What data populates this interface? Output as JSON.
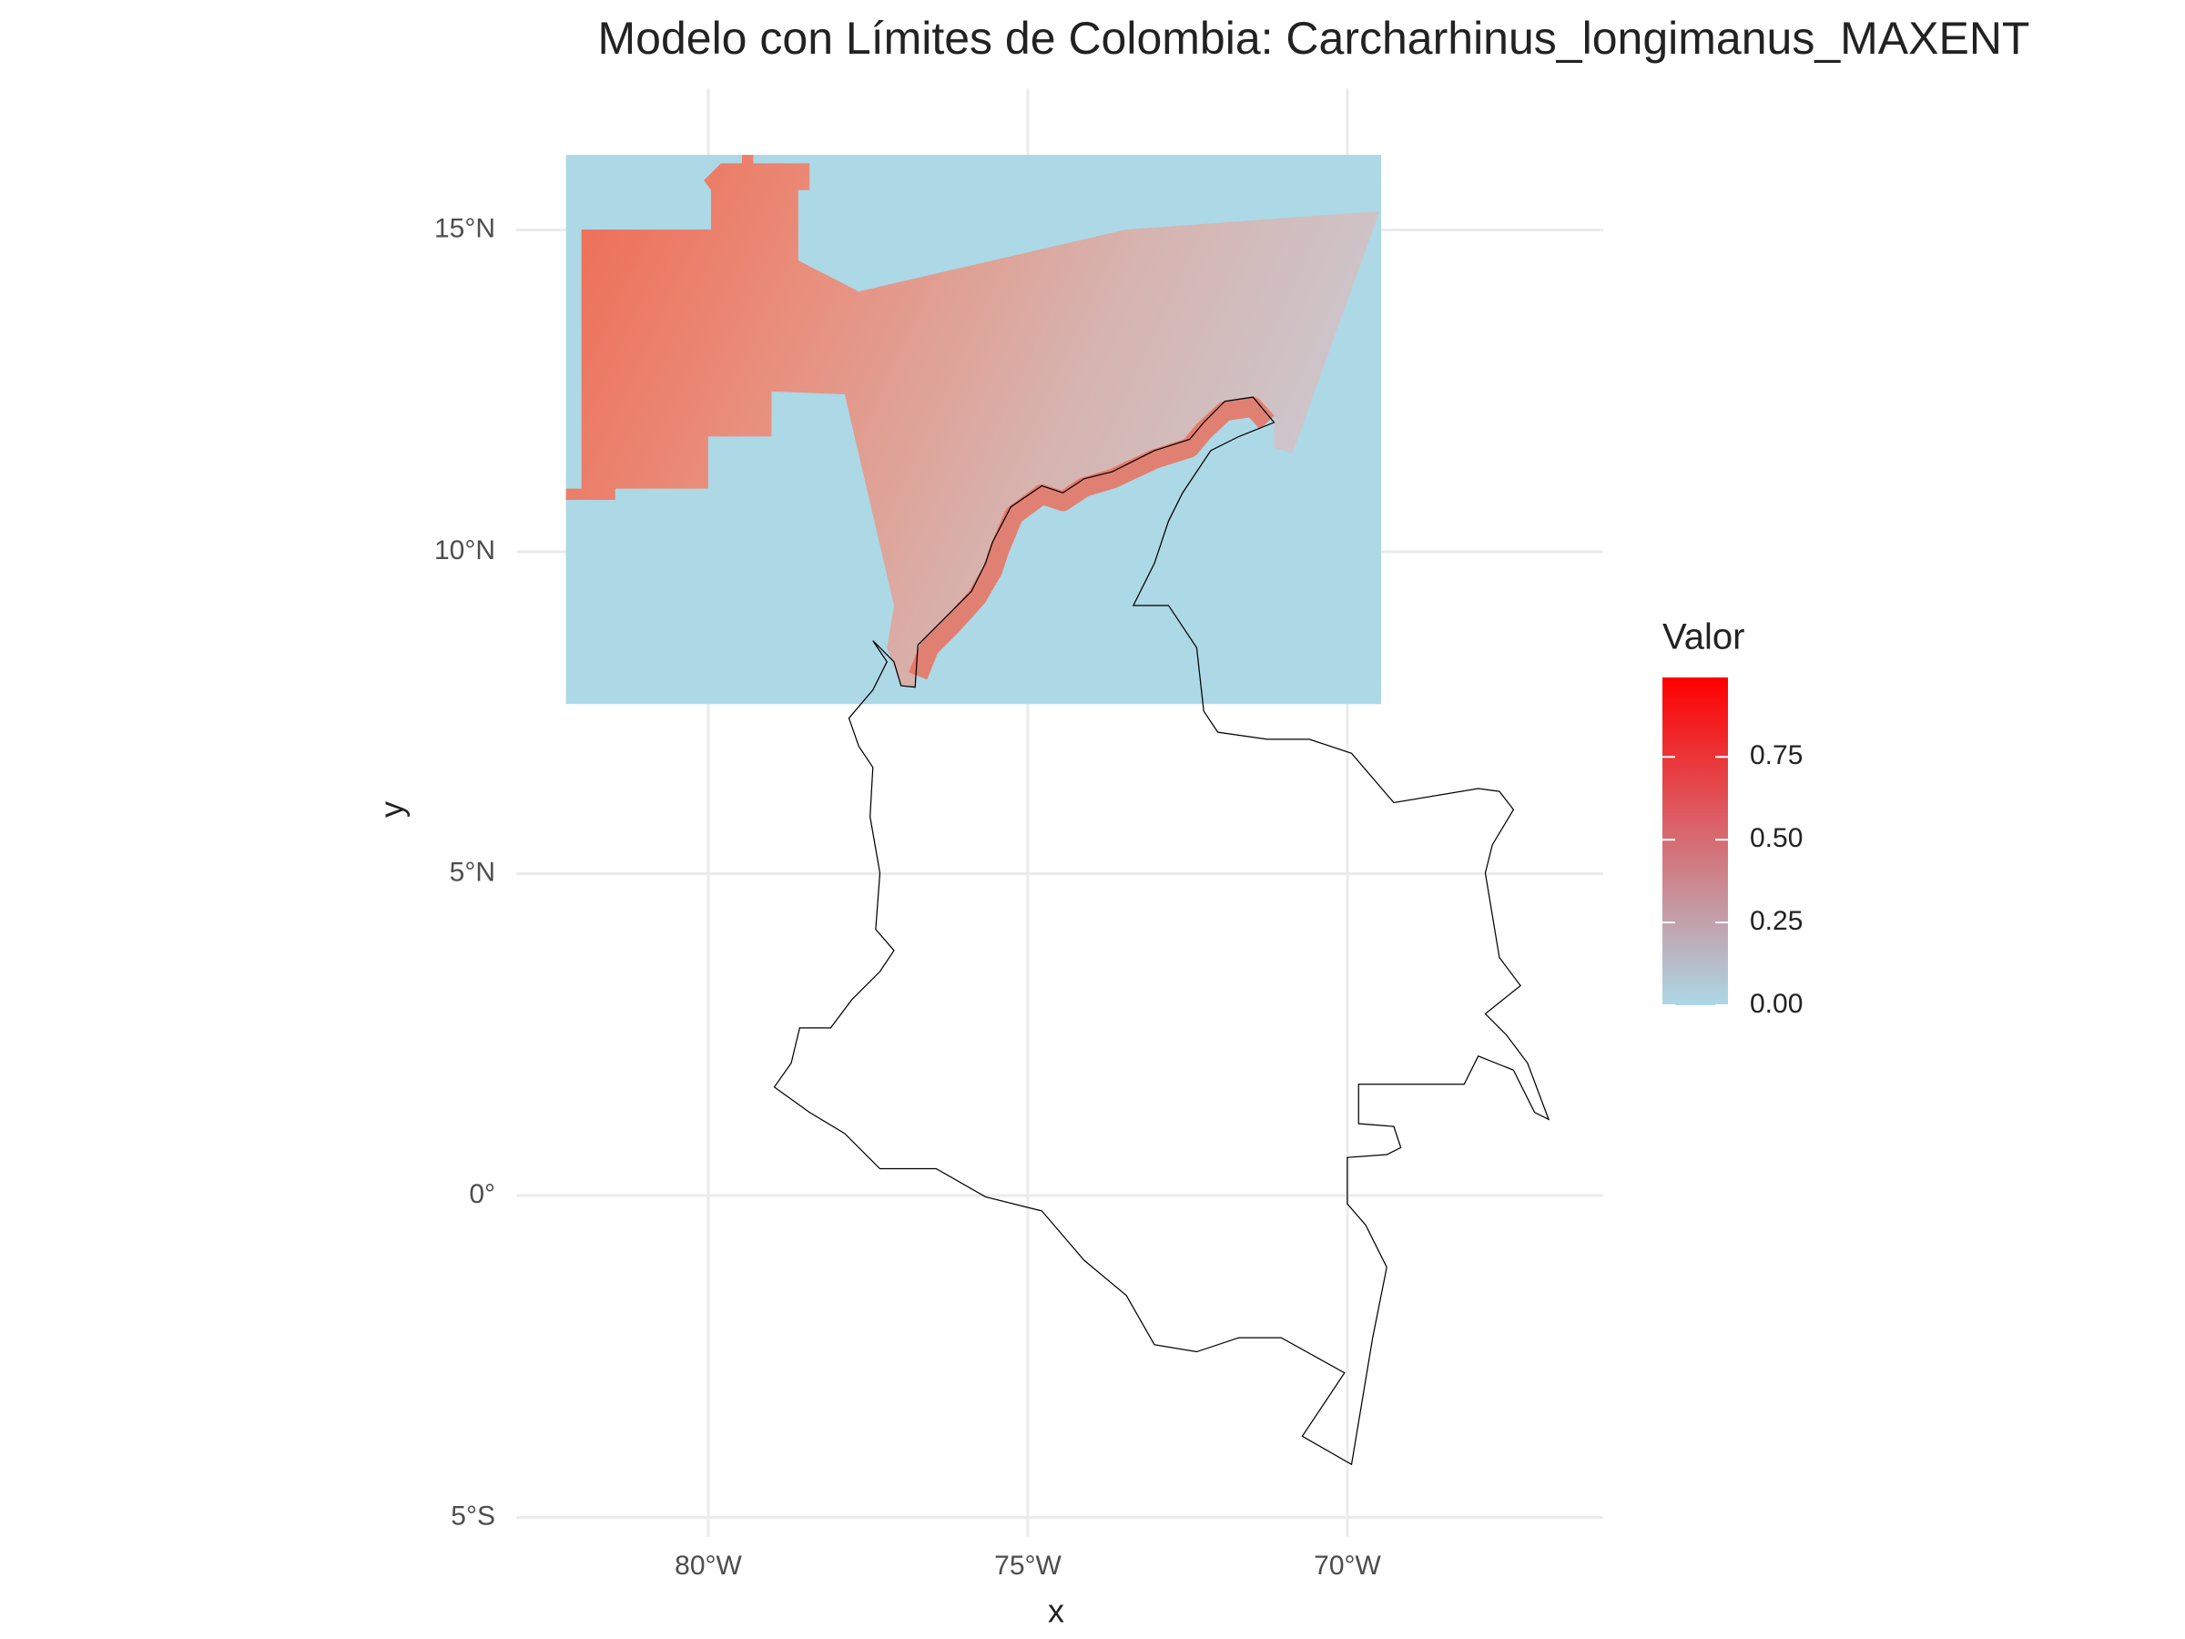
{
  "chart_data": {
    "type": "map",
    "title": "Modelo con Límites de Colombia: Carcharhinus_longimanus_MAXENT",
    "x_label": "x",
    "y_label": "y",
    "xlim": [
      -83,
      -66
    ],
    "ylim": [
      -5.3,
      17.2
    ],
    "xticks": [
      {
        "value": -80,
        "label": "80°W"
      },
      {
        "value": -75,
        "label": "75°W"
      },
      {
        "value": -70,
        "label": "70°W"
      }
    ],
    "yticks": [
      {
        "value": -5,
        "label": "5°S"
      },
      {
        "value": 0,
        "label": "0°"
      },
      {
        "value": 5,
        "label": "5°N"
      },
      {
        "value": 10,
        "label": "10°N"
      },
      {
        "value": 15,
        "label": "15°N"
      }
    ],
    "grid": true,
    "legend": {
      "title": "Valor",
      "lim": [
        0,
        0.99
      ],
      "low_color": "#add8e6",
      "high_color": "#ff0000",
      "ticks": [
        {
          "value": 0,
          "label": "0.00"
        },
        {
          "value": 0.25,
          "label": "0.25"
        },
        {
          "value": 0.5,
          "label": "0.50"
        },
        {
          "value": 0.75,
          "label": "0.75"
        }
      ]
    }
  }
}
